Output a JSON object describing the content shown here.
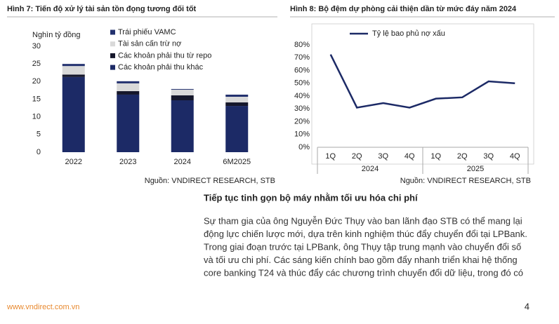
{
  "chart_data": [
    {
      "type": "stacked-bar",
      "title": "Hình 7: Tiến độ xử lý tài sản tồn đọng tương đối tốt",
      "y_label": "Nghìn tỷ đồng",
      "categories": [
        "2022",
        "2023",
        "2024",
        "6M2025"
      ],
      "series": [
        {
          "name": "Trái phiếu VAMC",
          "color": "#22306e",
          "values": [
            0.6,
            0.6,
            0.2,
            0.6
          ]
        },
        {
          "name": "Tài sản cấn trừ nợ",
          "color": "#d9d9d9",
          "values": [
            2.4,
            2.2,
            1.6,
            1.6
          ]
        },
        {
          "name": "Các khoản phải thu từ repo",
          "color": "#15172b",
          "values": [
            0.7,
            1.0,
            1.4,
            1.0
          ]
        },
        {
          "name": "Các khoản phải thu khác",
          "color": "#1c2a66",
          "values": [
            21.3,
            16.3,
            14.7,
            13.1
          ]
        }
      ],
      "ylim": [
        0,
        30
      ],
      "yticks": [
        0,
        5,
        10,
        15,
        20,
        25,
        30
      ],
      "source": "Nguồn: VNDIRECT RESEARCH, STB"
    },
    {
      "type": "line",
      "title": "Hình 8: Bộ đệm dự phòng cải thiện dần từ mức đáy năm 2024",
      "categories": [
        "1Q",
        "2Q",
        "3Q",
        "4Q",
        "1Q",
        "2Q",
        "3Q",
        "4Q"
      ],
      "groups": [
        "2024",
        "2025"
      ],
      "series": [
        {
          "name": "Tỷ lệ bao phủ nợ xấu",
          "color": "#1c2a66",
          "values": [
            72.5,
            31,
            34.5,
            31,
            38,
            39,
            51.5,
            50
          ]
        }
      ],
      "ylim": [
        0,
        80
      ],
      "yticks": [
        {
          "value": 0,
          "label": "0%"
        },
        {
          "value": 10,
          "label": "10%"
        },
        {
          "value": 20,
          "label": "20%"
        },
        {
          "value": 30,
          "label": "30%"
        },
        {
          "value": 40,
          "label": "40%"
        },
        {
          "value": 50,
          "label": "50%"
        },
        {
          "value": 60,
          "label": "60%"
        },
        {
          "value": 70,
          "label": "70%"
        },
        {
          "value": 80,
          "label": "80%"
        }
      ],
      "source": "Nguồn: VNDIRECT RESEARCH, STB"
    }
  ],
  "document": {
    "heading": "Tiếp tục tinh gọn bộ máy nhằm tối ưu hóa chi phí",
    "paragraph_lines": [
      "Sự tham gia của ông Nguyễn Đức Thụy vào ban lãnh đạo STB có thể mang lại",
      "động lực chiến lược mới, dựa trên kinh nghiệm thúc đẩy chuyển đổi tại LPBank.",
      "Trong giai đoạn trước tại LPBank, ông Thụy tập trung mạnh vào chuyển đổi số",
      "và tối ưu chi phí. Các sáng kiến chính bao gồm đẩy nhanh triển khai hệ thống",
      "core banking T24 và thúc đẩy các chương trình chuyển đổi dữ liệu, trong đó có"
    ],
    "footer_url": "www.vndirect.com.vn",
    "page_number": "4"
  }
}
